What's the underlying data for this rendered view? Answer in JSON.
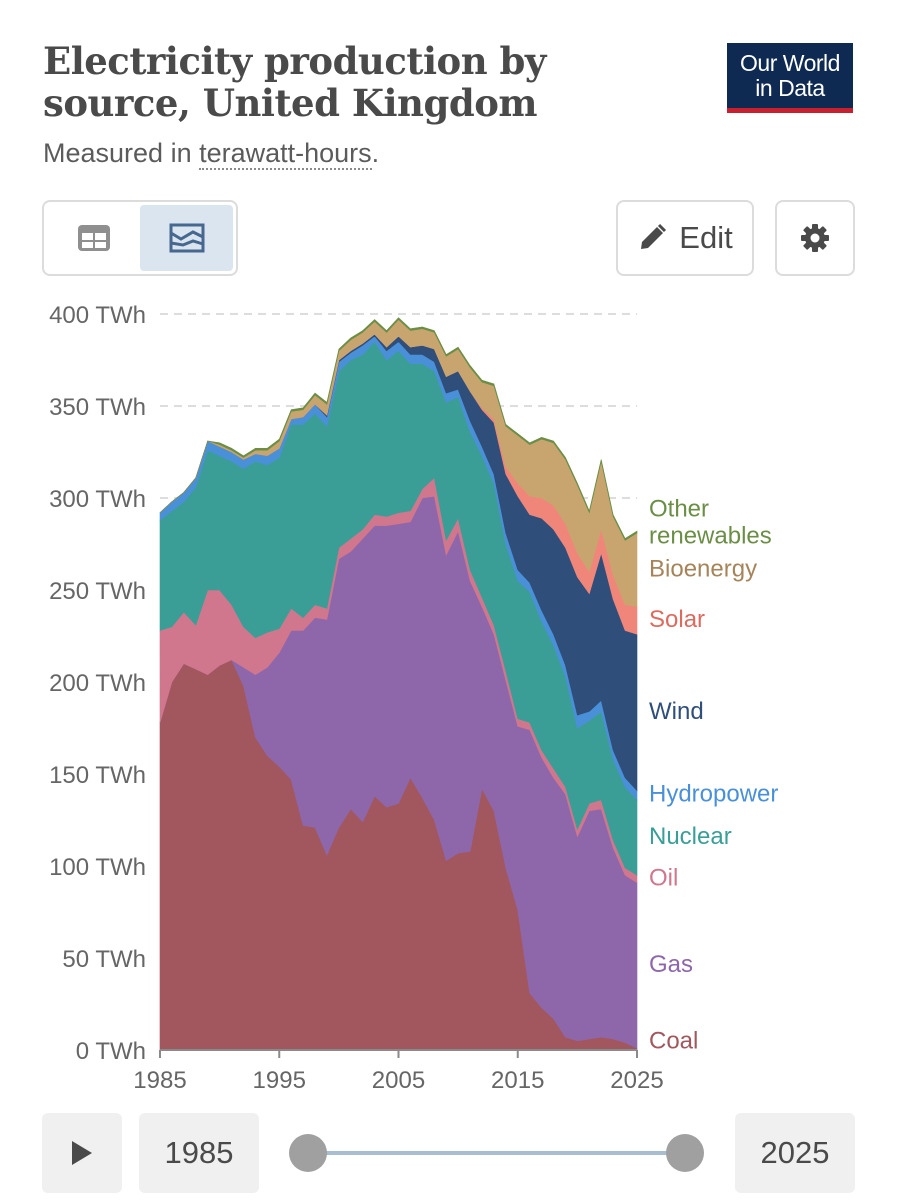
{
  "header": {
    "title": "Electricity production by source, United Kingdom",
    "subtitle_prefix": "Measured in ",
    "subtitle_unit": "terawatt-hours",
    "subtitle_suffix": ".",
    "logo_line1": "Our World",
    "logo_line2": "in Data",
    "logo_bg": "#0f2a52",
    "logo_accent": "#c8202f"
  },
  "toolbar": {
    "table_icon": "table-icon",
    "chart_icon": "chart-icon",
    "edit_label": "Edit",
    "edit_icon": "pencil-icon",
    "settings_icon": "gear-icon"
  },
  "timeline": {
    "play_icon": "play-icon",
    "start_year": "1985",
    "end_year": "2025"
  },
  "chart_data": {
    "type": "area",
    "stacked": true,
    "title": "Electricity production by source, United Kingdom",
    "subtitle": "Measured in terawatt-hours.",
    "ylim": [
      0,
      400
    ],
    "xlim": [
      1985,
      2025
    ],
    "y_ticks": [
      0,
      50,
      100,
      150,
      200,
      250,
      300,
      350,
      400
    ],
    "y_tick_labels": [
      "0 TWh",
      "50 TWh",
      "100 TWh",
      "150 TWh",
      "200 TWh",
      "250 TWh",
      "300 TWh",
      "350 TWh",
      "400 TWh"
    ],
    "x_ticks": [
      1985,
      1995,
      2005,
      2015,
      2025
    ],
    "x_tick_labels": [
      "1985",
      "1995",
      "2005",
      "2015",
      "2025"
    ],
    "grid": "horizontal dashed",
    "legend_placement": "right, inline labels",
    "x": [
      1985,
      1986,
      1987,
      1988,
      1989,
      1990,
      1991,
      1992,
      1993,
      1994,
      1995,
      1996,
      1997,
      1998,
      1999,
      2000,
      2001,
      2002,
      2003,
      2004,
      2005,
      2006,
      2007,
      2008,
      2009,
      2010,
      2011,
      2012,
      2013,
      2014,
      2015,
      2016,
      2017,
      2018,
      2019,
      2020,
      2021,
      2022,
      2023,
      2024,
      2025
    ],
    "series": [
      {
        "name": "Coal",
        "color": "#a2575e",
        "values": [
          178,
          200,
          210,
          207,
          204,
          209,
          212,
          198,
          170,
          160,
          154,
          147,
          122,
          121,
          106,
          121,
          131,
          124,
          138,
          132,
          134,
          148,
          137,
          125,
          103,
          107,
          108,
          142,
          130,
          99,
          76,
          31,
          23,
          17,
          7,
          5,
          6,
          7,
          6,
          4,
          1
        ]
      },
      {
        "name": "Gas",
        "color": "#8e67ab",
        "values": [
          0,
          0,
          0,
          0,
          0,
          0,
          0,
          10,
          34,
          48,
          62,
          81,
          106,
          114,
          128,
          146,
          140,
          154,
          147,
          153,
          152,
          139,
          163,
          176,
          166,
          175,
          147,
          99,
          96,
          102,
          100,
          143,
          136,
          131,
          132,
          111,
          124,
          124,
          104,
          91,
          90
        ]
      },
      {
        "name": "Oil",
        "color": "#d0778d",
        "values": [
          50,
          30,
          28,
          24,
          46,
          41,
          30,
          22,
          20,
          19,
          13,
          12,
          7,
          7,
          6,
          6,
          7,
          5,
          6,
          5,
          6,
          6,
          5,
          10,
          8,
          7,
          6,
          5,
          5,
          5,
          4,
          4,
          4,
          5,
          4,
          4,
          4,
          5,
          4,
          4,
          4
        ]
      },
      {
        "name": "Nuclear",
        "color": "#3a9e97",
        "values": [
          60,
          63,
          60,
          75,
          76,
          73,
          78,
          86,
          96,
          91,
          93,
          100,
          105,
          104,
          99,
          96,
          97,
          95,
          94,
          85,
          88,
          80,
          68,
          58,
          75,
          66,
          75,
          77,
          77,
          69,
          75,
          71,
          70,
          67,
          60,
          55,
          45,
          48,
          44,
          44,
          41
        ]
      },
      {
        "name": "Hydropower",
        "color": "#4a90d9",
        "values": [
          4,
          5,
          5,
          5,
          5,
          5,
          5,
          5,
          4,
          5,
          5,
          3,
          4,
          5,
          5,
          5,
          4,
          5,
          3,
          5,
          5,
          5,
          5,
          5,
          5,
          4,
          6,
          5,
          5,
          6,
          6,
          5,
          6,
          6,
          6,
          7,
          5,
          6,
          5,
          5,
          5
        ]
      },
      {
        "name": "Wind",
        "color": "#2f4e7a",
        "values": [
          0,
          0,
          0,
          0,
          0,
          0,
          0,
          0,
          0,
          0,
          0,
          0,
          0,
          0,
          1,
          1,
          1,
          1,
          1,
          2,
          3,
          4,
          5,
          7,
          9,
          10,
          16,
          20,
          28,
          32,
          40,
          37,
          50,
          57,
          64,
          75,
          64,
          80,
          82,
          80,
          85
        ]
      },
      {
        "name": "Solar",
        "color": "#f08679",
        "values": [
          0,
          0,
          0,
          0,
          0,
          0,
          0,
          0,
          0,
          0,
          0,
          0,
          0,
          0,
          0,
          0,
          0,
          0,
          0,
          0,
          0,
          0,
          0,
          0,
          0,
          0,
          0,
          1,
          2,
          4,
          7,
          10,
          11,
          13,
          13,
          13,
          12,
          13,
          13,
          14,
          15
        ]
      },
      {
        "name": "Bioenergy",
        "color": "#c8a56f",
        "values": [
          0,
          0,
          0,
          0,
          0,
          1,
          1,
          1,
          2,
          3,
          4,
          4,
          4,
          5,
          6,
          5,
          6,
          6,
          7,
          8,
          9,
          9,
          9,
          9,
          11,
          12,
          13,
          14,
          18,
          22,
          26,
          28,
          32,
          34,
          35,
          37,
          32,
          37,
          32,
          35,
          40
        ]
      },
      {
        "name": "Other renewables",
        "color": "#6b8e47",
        "values": [
          0,
          0,
          0,
          0,
          0,
          1,
          1,
          1,
          1,
          1,
          1,
          1,
          1,
          1,
          1,
          1,
          1,
          1,
          1,
          1,
          1,
          1,
          1,
          1,
          1,
          1,
          1,
          1,
          1,
          1,
          1,
          1,
          1,
          1,
          1,
          1,
          1,
          1,
          1,
          1,
          1
        ]
      }
    ]
  }
}
